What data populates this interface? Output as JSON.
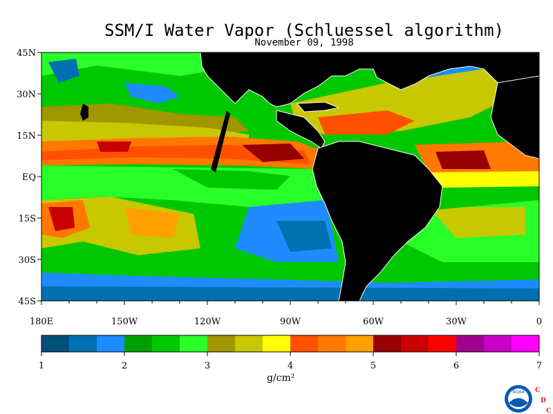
{
  "title": "SSM/I Water Vapor (Schluessel algorithm)",
  "subtitle": "November 09, 1998",
  "map": {
    "lat_labels": [
      "45N",
      "30N",
      "15N",
      "EQ",
      "15S",
      "30S",
      "45S"
    ],
    "lon_labels": [
      "180E",
      "150W",
      "120W",
      "90W",
      "60W",
      "30W",
      "0"
    ],
    "colors": {
      "land": "#000000",
      "coast": "#ffffff",
      "ocean_base": "#0aa0ff"
    }
  },
  "colorbar": {
    "colors": [
      "#00507a",
      "#0070b0",
      "#1e8cff",
      "#00a000",
      "#00c800",
      "#28ff28",
      "#a09600",
      "#c8c800",
      "#ffff00",
      "#ff5000",
      "#ff7800",
      "#ffa000",
      "#960000",
      "#c80000",
      "#ff0000",
      "#a0008c",
      "#c800c8",
      "#ff00ff"
    ],
    "tick_labels": [
      "1",
      "2",
      "3",
      "4",
      "5",
      "6",
      "7"
    ],
    "units": "g/cm²"
  },
  "logo": {
    "noaa_text": "NOAA",
    "cdc_letters": [
      "C",
      "D",
      "C"
    ],
    "colors": {
      "cdc": "#ff0000",
      "noaa_blue": "#0a5ab4"
    }
  }
}
